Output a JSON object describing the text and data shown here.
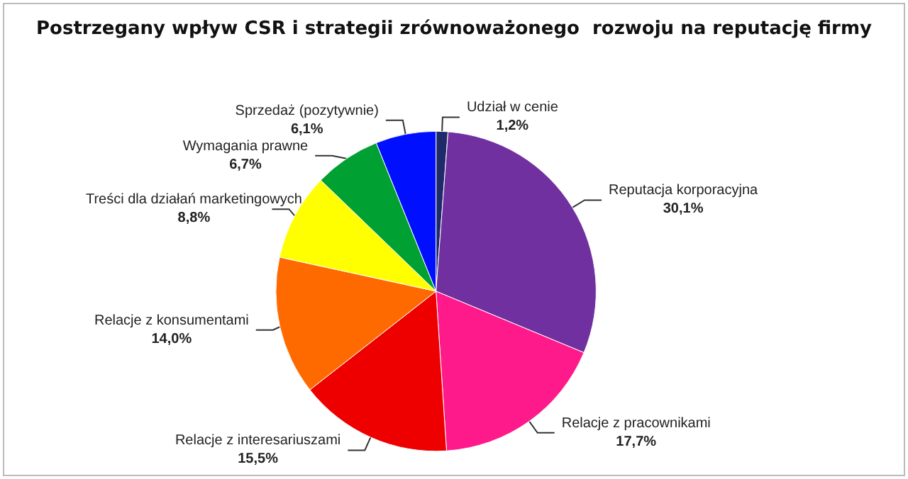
{
  "chart_data": {
    "type": "pie",
    "title": "Postrzegany wpływ CSR i strategii zrównoważonego  rozwoju na reputację firmy",
    "categories": [
      "Udział w cenie",
      "Reputacja korporacyjna",
      "Relacje z pracownikami",
      "Relacje z interesariuszami",
      "Relacje z konsumentami",
      "Treści dla działań marketingowych",
      "Wymagania prawne",
      "Sprzedaż (pozytywnie)"
    ],
    "values": [
      1.2,
      30.1,
      17.7,
      15.5,
      14.0,
      8.8,
      6.7,
      6.1
    ],
    "value_labels": [
      "1,2%",
      "30,1%",
      "17,7%",
      "15,5%",
      "14,0%",
      "8,8%",
      "6,7%",
      "6,1%"
    ],
    "colors": [
      "#1f2a6b",
      "#7030a0",
      "#ff1a8c",
      "#ee0000",
      "#ff6a00",
      "#ffff00",
      "#00a032",
      "#0010ff"
    ],
    "legend": false
  }
}
